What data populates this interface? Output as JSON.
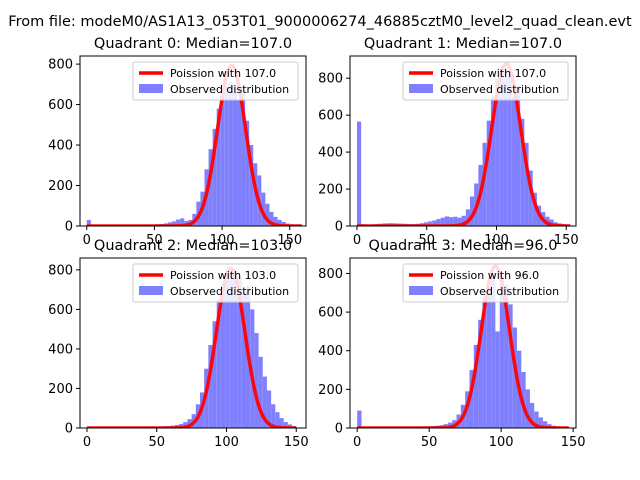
{
  "figure": {
    "suptitle": "From file: modeM0/AS1A13_053T01_9000006274_46885cztM0_level2_quad_clean.evt"
  },
  "colors": {
    "poisson_line": "#ff0000",
    "observed_bars": "#8080ff"
  },
  "chart_data": [
    {
      "type": "bar",
      "title": "Quadrant 0: Median=107.0",
      "xlim": [
        -5,
        162
      ],
      "ylim": [
        0,
        840
      ],
      "xticks": [
        0,
        50,
        100,
        150
      ],
      "yticks": [
        0,
        200,
        400,
        600,
        800
      ],
      "bin_width": 3,
      "legend": {
        "placement": "upper right",
        "entries": [
          "Poission with 107.0",
          "Observed distribution"
        ]
      },
      "poisson": {
        "name": "Poission with 107.0",
        "mu": 107.0,
        "peak": 793,
        "x_max": 159
      },
      "observed": {
        "name": "Observed distribution",
        "bins_x": [
          0,
          3,
          6,
          9,
          12,
          15,
          18,
          21,
          24,
          27,
          30,
          33,
          36,
          39,
          42,
          45,
          48,
          51,
          54,
          57,
          60,
          63,
          66,
          69,
          72,
          75,
          78,
          81,
          84,
          87,
          90,
          93,
          96,
          99,
          102,
          105,
          108,
          111,
          114,
          117,
          120,
          123,
          126,
          129,
          132,
          135,
          138,
          141,
          144,
          147,
          150,
          153,
          156
        ],
        "values": [
          30,
          5,
          3,
          3,
          2,
          2,
          2,
          3,
          3,
          3,
          3,
          3,
          3,
          4,
          5,
          6,
          7,
          9,
          10,
          13,
          18,
          23,
          32,
          38,
          25,
          30,
          60,
          120,
          170,
          280,
          380,
          480,
          580,
          660,
          690,
          710,
          690,
          620,
          680,
          520,
          400,
          310,
          250,
          165,
          110,
          70,
          45,
          30,
          20,
          12,
          8,
          5,
          3
        ]
      }
    },
    {
      "type": "bar",
      "title": "Quadrant 1: Median=107.0",
      "xlim": [
        -5,
        157
      ],
      "ylim": [
        0,
        920
      ],
      "xticks": [
        0,
        50,
        100,
        150
      ],
      "yticks": [
        0,
        200,
        400,
        600,
        800
      ],
      "bin_width": 3,
      "legend": {
        "placement": "upper right",
        "entries": [
          "Poission with 107.0",
          "Observed distribution"
        ]
      },
      "poisson": {
        "name": "Poission with 107.0",
        "mu": 107.0,
        "peak": 878,
        "x_max": 153
      },
      "observed": {
        "name": "Observed distribution",
        "bins_x": [
          0,
          3,
          6,
          9,
          12,
          15,
          18,
          21,
          24,
          27,
          30,
          33,
          36,
          39,
          42,
          45,
          48,
          51,
          54,
          57,
          60,
          63,
          66,
          69,
          72,
          75,
          78,
          81,
          84,
          87,
          90,
          93,
          96,
          99,
          102,
          105,
          108,
          111,
          114,
          117,
          120,
          123,
          126,
          129,
          132,
          135,
          138,
          141,
          144,
          147,
          150
        ],
        "values": [
          565,
          10,
          8,
          8,
          10,
          12,
          14,
          15,
          15,
          14,
          13,
          12,
          11,
          10,
          12,
          15,
          20,
          25,
          30,
          38,
          45,
          52,
          48,
          50,
          45,
          55,
          90,
          160,
          230,
          330,
          450,
          570,
          700,
          800,
          820,
          840,
          810,
          700,
          760,
          580,
          450,
          300,
          180,
          110,
          75,
          50,
          35,
          20,
          14,
          10,
          6
        ]
      }
    },
    {
      "type": "bar",
      "title": "Quadrant 2: Median=103.0",
      "xlim": [
        -5,
        157
      ],
      "ylim": [
        0,
        860
      ],
      "xticks": [
        0,
        50,
        100,
        150
      ],
      "yticks": [
        0,
        200,
        400,
        600,
        800
      ],
      "bin_width": 3,
      "legend": {
        "placement": "upper right",
        "entries": [
          "Poission with 103.0",
          "Observed distribution"
        ]
      },
      "poisson": {
        "name": "Poission with 103.0",
        "mu": 103.0,
        "peak": 808,
        "x_max": 150
      },
      "observed": {
        "name": "Observed distribution",
        "bins_x": [
          0,
          3,
          6,
          9,
          12,
          15,
          18,
          21,
          24,
          27,
          30,
          33,
          36,
          39,
          42,
          45,
          48,
          51,
          54,
          57,
          60,
          63,
          66,
          69,
          72,
          75,
          78,
          81,
          84,
          87,
          90,
          93,
          96,
          99,
          102,
          105,
          108,
          111,
          114,
          117,
          120,
          123,
          126,
          129,
          132,
          135,
          138,
          141,
          144,
          147
        ],
        "values": [
          3,
          2,
          2,
          2,
          2,
          2,
          2,
          2,
          2,
          2,
          2,
          2,
          3,
          3,
          4,
          5,
          6,
          7,
          8,
          10,
          12,
          15,
          20,
          30,
          45,
          70,
          120,
          180,
          300,
          420,
          540,
          650,
          720,
          760,
          780,
          790,
          760,
          690,
          720,
          600,
          480,
          360,
          260,
          190,
          120,
          80,
          50,
          30,
          18,
          10
        ]
      }
    },
    {
      "type": "bar",
      "title": "Quadrant 3: Median=96.0",
      "xlim": [
        -5,
        152
      ],
      "ylim": [
        0,
        880
      ],
      "xticks": [
        0,
        50,
        100,
        150
      ],
      "yticks": [
        0,
        200,
        400,
        600,
        800
      ],
      "bin_width": 3,
      "legend": {
        "placement": "upper right",
        "entries": [
          "Poission with 96.0",
          "Observed distribution"
        ]
      },
      "poisson": {
        "name": "Poission with 96.0",
        "mu": 96.0,
        "peak": 838,
        "x_max": 147
      },
      "observed": {
        "name": "Observed distribution",
        "bins_x": [
          0,
          3,
          6,
          9,
          12,
          15,
          18,
          21,
          24,
          27,
          30,
          33,
          36,
          39,
          42,
          45,
          48,
          51,
          54,
          57,
          60,
          63,
          66,
          69,
          72,
          75,
          78,
          81,
          84,
          87,
          90,
          93,
          96,
          99,
          102,
          105,
          108,
          111,
          114,
          117,
          120,
          123,
          126,
          129,
          132,
          135,
          138,
          141,
          144
        ],
        "values": [
          90,
          5,
          3,
          3,
          3,
          3,
          3,
          3,
          3,
          3,
          3,
          3,
          3,
          4,
          5,
          6,
          8,
          10,
          12,
          15,
          20,
          28,
          40,
          70,
          120,
          190,
          300,
          430,
          560,
          680,
          760,
          800,
          500,
          790,
          740,
          640,
          520,
          400,
          290,
          200,
          130,
          85,
          55,
          35,
          20,
          12,
          8,
          5,
          3
        ]
      }
    }
  ]
}
